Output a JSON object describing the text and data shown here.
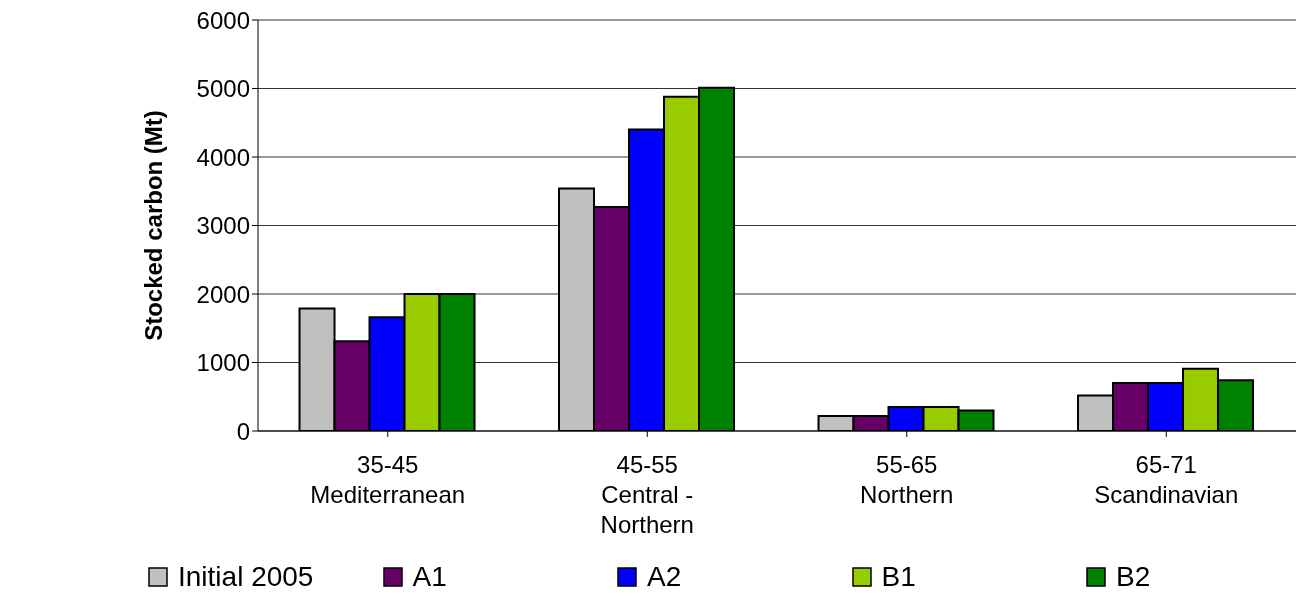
{
  "chart_data": {
    "type": "bar",
    "ylabel": "Stocked carbon (Mt)",
    "categories": [
      "35-45\nMediterranean",
      "45-55\nCentral -\nNorthern",
      "55-65\nNorthern",
      "65-71\nScandinavian"
    ],
    "series": [
      {
        "name": "Initial 2005",
        "color": "#c0c0c0",
        "values": [
          1790,
          3540,
          220,
          520
        ]
      },
      {
        "name": "A1",
        "color": "#660066",
        "values": [
          1310,
          3270,
          220,
          700
        ]
      },
      {
        "name": "A2",
        "color": "#0000ff",
        "values": [
          1660,
          4400,
          350,
          700
        ]
      },
      {
        "name": "B1",
        "color": "#99cc00",
        "values": [
          2000,
          4880,
          350,
          910
        ]
      },
      {
        "name": "B2",
        "color": "#008000",
        "values": [
          2000,
          5010,
          300,
          740
        ]
      }
    ],
    "ylim": [
      0,
      6000
    ],
    "yticks": [
      0,
      1000,
      2000,
      3000,
      4000,
      5000,
      6000
    ],
    "grid": "y",
    "legend": "bottom"
  }
}
